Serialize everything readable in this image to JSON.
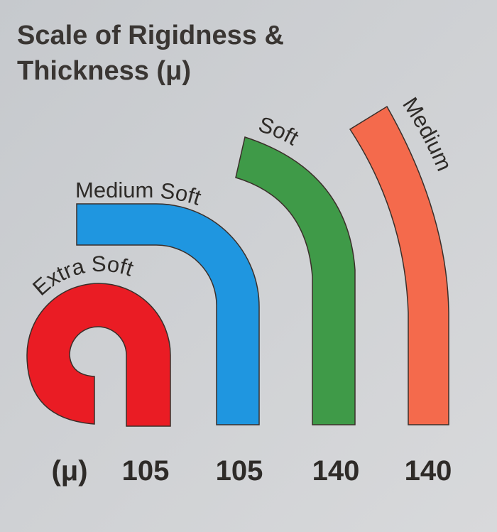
{
  "header": {
    "title": [
      "Scale of Rigidness &",
      "Thickness (μ)"
    ]
  },
  "unit": "(μ)",
  "items": [
    {
      "label": "Extra Soft",
      "thickness": 105
    },
    {
      "label": "Medium Soft",
      "thickness": 105
    },
    {
      "label": "Soft",
      "thickness": 140
    },
    {
      "label": "Medium",
      "thickness": 140
    }
  ]
}
